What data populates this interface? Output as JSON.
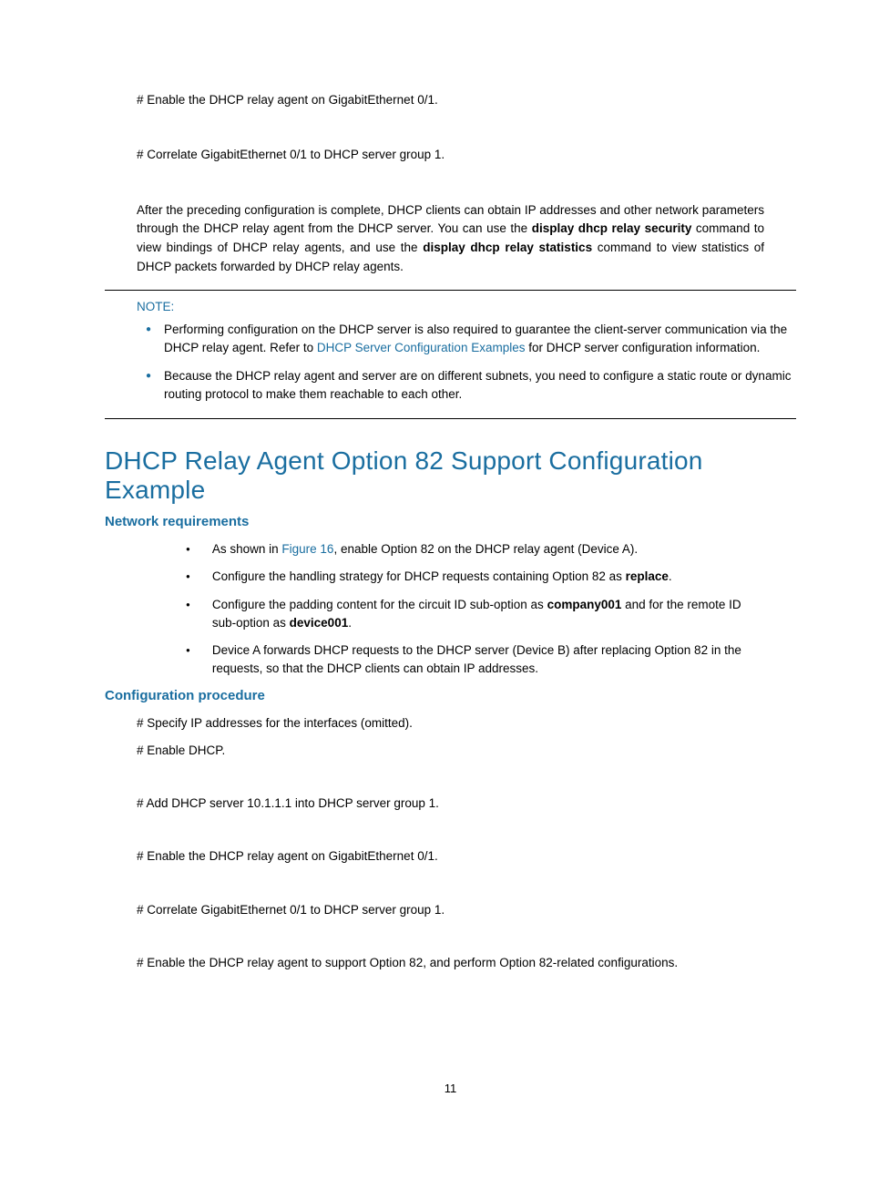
{
  "colors": {
    "accent": "#1a6ea0",
    "text": "#000000",
    "background": "#ffffff"
  },
  "typography": {
    "body_size_pt": 10,
    "h1_size_pt": 21,
    "h2_size_pt": 11,
    "font_family": "Arial"
  },
  "intro_steps": [
    "# Enable the DHCP relay agent on GigabitEthernet 0/1.",
    "# Correlate GigabitEthernet 0/1 to DHCP server group 1."
  ],
  "after_paragraph": {
    "pre1": "After the preceding configuration is complete, DHCP clients can obtain IP addresses and other network parameters through the DHCP relay agent from the DHCP server. You can use the ",
    "bold1": "display dhcp relay security",
    "mid": " command to view bindings of DHCP relay agents, and use the ",
    "bold2": "display dhcp relay statistics",
    "post": " command to view statistics of DHCP packets forwarded by DHCP relay agents."
  },
  "note": {
    "label": "NOTE:",
    "items": [
      {
        "pre": "Performing configuration on the DHCP server is also required to guarantee the client-server communication via the DHCP relay agent. Refer to ",
        "link": "DHCP Server Configuration Examples",
        "post": " for DHCP server configuration information."
      },
      {
        "pre": "Because the DHCP relay agent and server are on different subnets, you need to configure a static route or dynamic routing protocol to make them reachable to each other.",
        "link": "",
        "post": ""
      }
    ]
  },
  "h1": "DHCP Relay Agent Option 82 Support Configuration Example",
  "network_req": {
    "heading": "Network requirements",
    "items": [
      {
        "pre": "As shown in ",
        "link": "Figure 16",
        "post": ", enable Option 82 on the DHCP relay agent (Device A)."
      },
      {
        "pre": "Configure the handling strategy for DHCP requests containing Option 82 as ",
        "bold": "replace",
        "post": "."
      },
      {
        "pre": "Configure the padding content for the circuit ID sub-option as ",
        "bold": "company001",
        "mid": " and for the remote ID sub-option as ",
        "bold2": "device001",
        "post": "."
      },
      {
        "pre": "Device A forwards DHCP requests to the DHCP server (Device B) after replacing Option 82 in the requests, so that the DHCP clients can obtain IP addresses."
      }
    ]
  },
  "config_proc": {
    "heading": "Configuration procedure",
    "lines": [
      {
        "text": "# Specify IP addresses for the interfaces (omitted).",
        "gap": false
      },
      {
        "text": "# Enable DHCP.",
        "gap": true
      },
      {
        "text": "# Add DHCP server 10.1.1.1 into DHCP server group 1.",
        "gap": true
      },
      {
        "text": "# Enable the DHCP relay agent on GigabitEthernet 0/1.",
        "gap": true
      },
      {
        "text": "# Correlate GigabitEthernet 0/1 to DHCP server group 1.",
        "gap": true
      },
      {
        "text": "# Enable the DHCP relay agent to support Option 82, and perform Option 82-related configurations.",
        "gap": false
      }
    ]
  },
  "page_number": "11"
}
